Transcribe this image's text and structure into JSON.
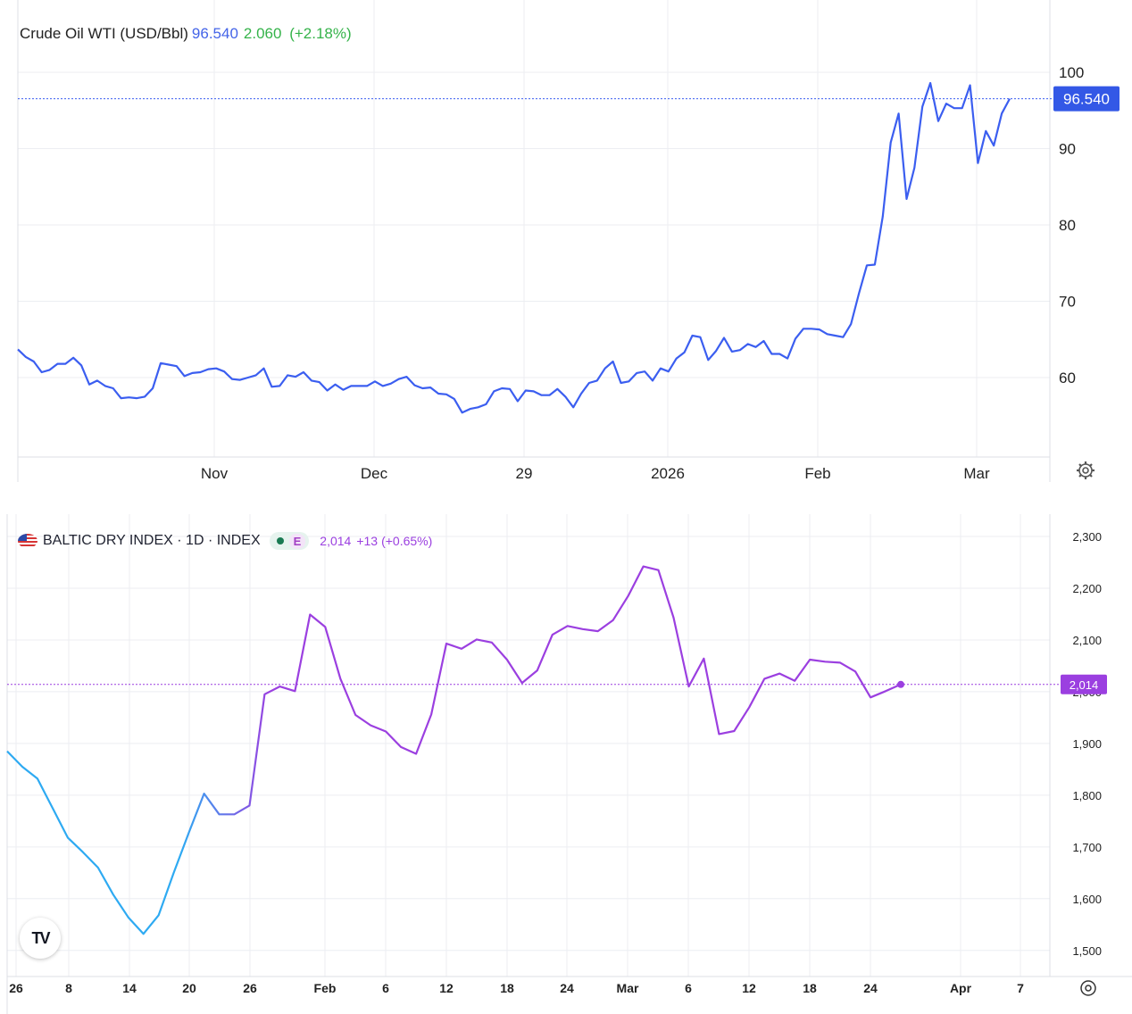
{
  "chart_data": [
    {
      "type": "line",
      "title": "Crude Oil WTI (USD/Bbl)",
      "last_price": "96.540",
      "change": "2.060",
      "change_pct": "(+2.18%)",
      "price_label": "96.540",
      "y_ticks": [
        "100",
        "90",
        "80",
        "70",
        "60"
      ],
      "ylim": [
        50,
        105
      ],
      "x_ticks": [
        "Nov",
        "Dec",
        "29",
        "2026",
        "Feb",
        "Mar"
      ],
      "series": [
        {
          "values": [
            63.7,
            62.7,
            62.1,
            60.7,
            61.0,
            61.8,
            61.8,
            62.6,
            61.6,
            59.1,
            59.6,
            58.9,
            58.6,
            57.3,
            57.4,
            57.3,
            57.5,
            58.6,
            61.9,
            61.7,
            61.5,
            60.2,
            60.6,
            60.7,
            61.1,
            61.2,
            60.8,
            59.8,
            59.7,
            60.0,
            60.3,
            61.2,
            58.8,
            58.9,
            60.3,
            60.1,
            60.7,
            59.6,
            59.4,
            58.3,
            59.1,
            58.4,
            58.9,
            58.9,
            58.9,
            59.5,
            58.9,
            59.2,
            59.8,
            60.1,
            59.0,
            58.6,
            58.7,
            57.9,
            57.8,
            57.2,
            55.4,
            55.9,
            56.1,
            56.5,
            58.2,
            58.6,
            58.5,
            56.9,
            58.3,
            58.2,
            57.7,
            57.7,
            58.5,
            57.5,
            56.1,
            57.9,
            59.3,
            59.6,
            61.2,
            62.1,
            59.3,
            59.5,
            60.6,
            60.8,
            59.6,
            61.2,
            60.8,
            62.5,
            63.3,
            65.5,
            65.3,
            62.3,
            63.5,
            65.2,
            63.4,
            63.6,
            64.4,
            64.0,
            64.8,
            63.1,
            63.1,
            62.5,
            65.1,
            66.4,
            66.4,
            66.3,
            65.7,
            65.5,
            65.3,
            67.0,
            71.0,
            74.7,
            74.8,
            81.1,
            90.8,
            94.6,
            83.4,
            87.5,
            95.5,
            98.6,
            93.6,
            95.9,
            95.3,
            95.3,
            98.3,
            88.1,
            92.3,
            90.4,
            94.6,
            96.54
          ]
        }
      ]
    },
    {
      "type": "line",
      "title": "BALTIC DRY INDEX · 1D · INDEX",
      "badge": "E",
      "last_value": "2,014",
      "change": "+13",
      "change_pct": "(+0.65%)",
      "price_label": "2,014",
      "y_ticks": [
        "2,300",
        "2,200",
        "2,100",
        "2,000",
        "1,900",
        "1,800",
        "1,700",
        "1,600",
        "1,500"
      ],
      "ylim": [
        1470,
        2330
      ],
      "x_ticks": [
        "26",
        "8",
        "14",
        "20",
        "26",
        "Feb",
        "6",
        "12",
        "18",
        "24",
        "Mar",
        "6",
        "12",
        "18",
        "24",
        "Apr",
        "7"
      ],
      "series": [
        {
          "values": [
            1885,
            1855,
            1832,
            1775,
            1718,
            1690,
            1660,
            1608,
            1564,
            1532,
            1568,
            1650,
            1728,
            1803,
            1763,
            1763,
            1780,
            1995,
            2010,
            2001,
            2149,
            2125,
            2025,
            1955,
            1935,
            1923,
            1893,
            1880,
            1956,
            2093,
            2083,
            2101,
            2095,
            2062,
            2017,
            2041,
            2110,
            2127,
            2121,
            2117,
            2138,
            2185,
            2242,
            2235,
            2143,
            2010,
            2064,
            1918,
            1924,
            1970,
            2025,
            2035,
            2021,
            2062,
            2058,
            2056,
            2039,
            1989,
            2001,
            2014
          ]
        }
      ]
    }
  ],
  "colors": {
    "wti_line": "#3b5ef0",
    "wti_price_bg": "#3358e6",
    "wti_change": "#35b34a",
    "bdi_line_start": "#2eaaf2",
    "bdi_line_end": "#9b3fe0",
    "grid": "#eceef2"
  },
  "icons": [
    "gear-icon",
    "us-flag-icon",
    "tradingview-logo",
    "settings-circle-icon"
  ]
}
